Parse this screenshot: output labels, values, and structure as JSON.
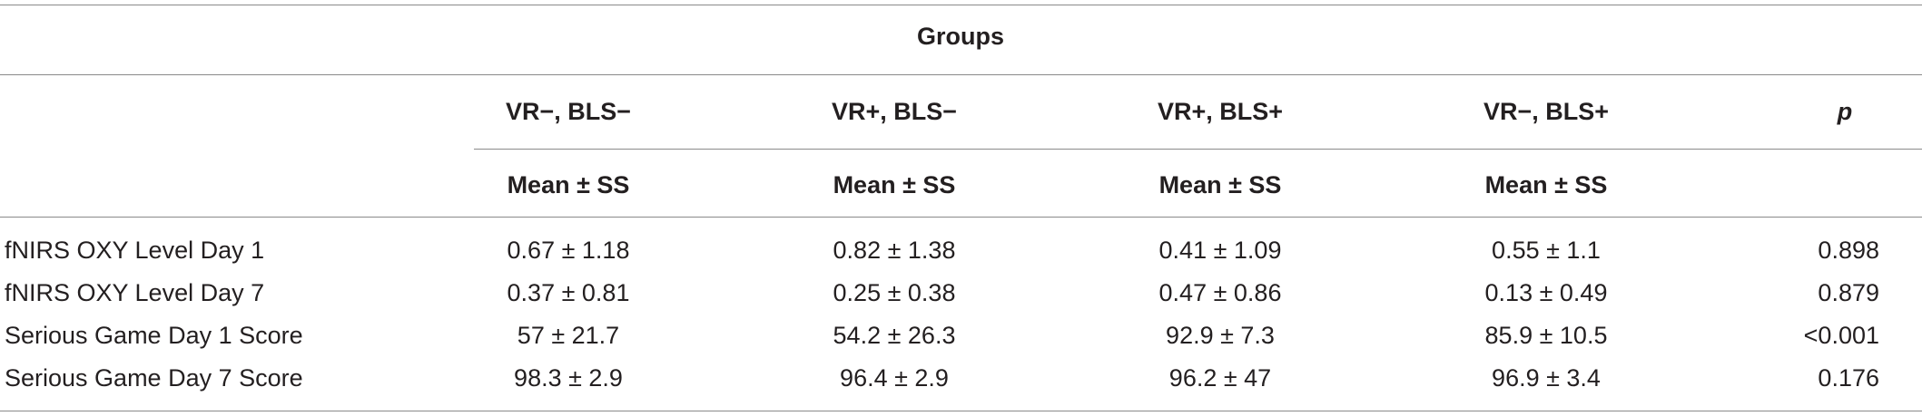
{
  "table": {
    "group_header": "Groups",
    "columns": [
      "VR−, BLS−",
      "VR+, BLS−",
      "VR+, BLS+",
      "VR−, BLS+"
    ],
    "p_header": "p",
    "stat_header": "Mean ± SS",
    "rows": [
      {
        "label": "fNIRS OXY Level Day 1",
        "values": [
          "0.67 ± 1.18",
          "0.82 ± 1.38",
          "0.41 ± 1.09",
          "0.55 ± 1.1"
        ],
        "p": "0.898"
      },
      {
        "label": "fNIRS OXY Level Day 7",
        "values": [
          "0.37 ± 0.81",
          "0.25 ± 0.38",
          "0.47 ± 0.86",
          "0.13 ± 0.49"
        ],
        "p": "0.879"
      },
      {
        "label": "Serious Game Day 1 Score",
        "values": [
          "57 ± 21.7",
          "54.2 ± 26.3",
          "92.9 ± 7.3",
          "85.9 ± 10.5"
        ],
        "p": "<0.001"
      },
      {
        "label": "Serious Game Day 7 Score",
        "values": [
          "98.3 ± 2.9",
          "96.4 ± 2.9",
          "96.2 ± 47",
          "96.9 ± 3.4"
        ],
        "p": "0.176"
      }
    ]
  }
}
